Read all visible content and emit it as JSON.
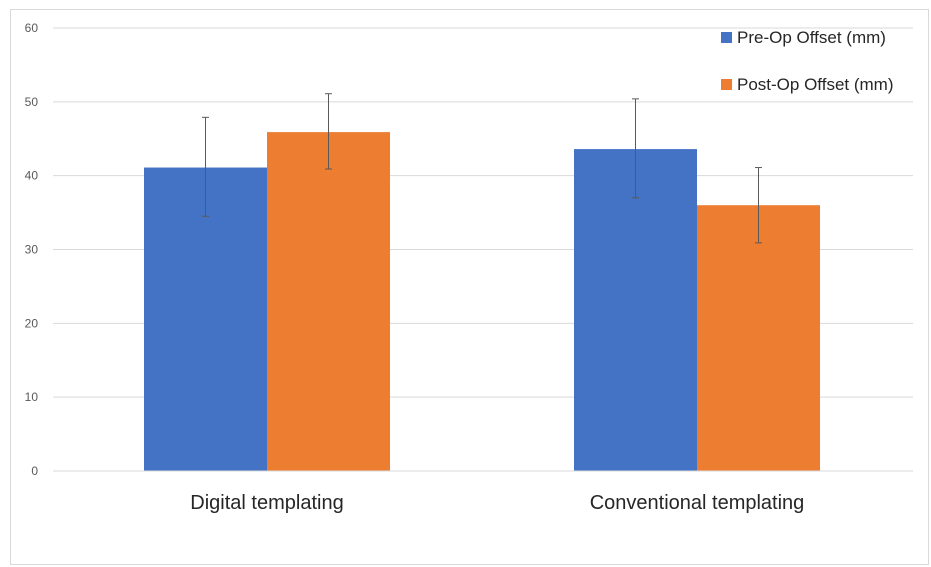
{
  "chart_data": {
    "type": "bar",
    "categories": [
      "Digital templating",
      "Conventional templating"
    ],
    "series": [
      {
        "name": "Pre-Op Offset (mm)",
        "color": "#4472c4",
        "values": [
          41.1,
          43.6
        ],
        "error_low": [
          34.5,
          37.0
        ],
        "error_high": [
          47.9,
          50.4
        ]
      },
      {
        "name": "Post-Op Offset (mm)",
        "color": "#ed7d31",
        "values": [
          45.9,
          36.0
        ],
        "error_low": [
          40.9,
          30.9
        ],
        "error_high": [
          51.1,
          41.1
        ]
      }
    ],
    "y_ticks": [
      "0",
      "10",
      "20",
      "30",
      "40",
      "50",
      "60"
    ],
    "ylim": [
      0,
      60
    ],
    "grid": true,
    "legend_position": "top-right",
    "gridline_color": "#d9d9d9",
    "error_bar_color": "#595959"
  }
}
